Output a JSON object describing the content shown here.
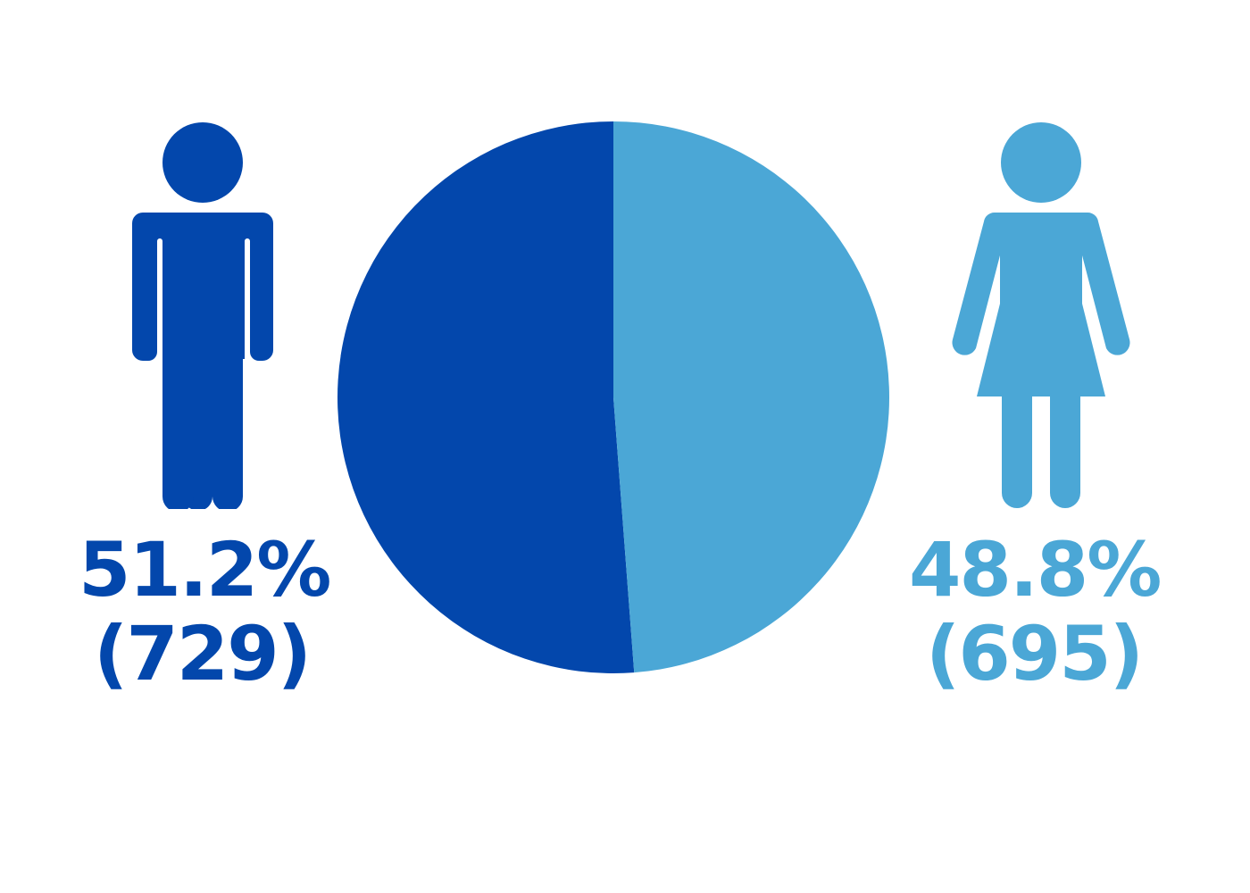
{
  "colors": {
    "male": "#0347AC",
    "female": "#4BA7D6",
    "background": "#FFFFFF"
  },
  "icons": {
    "male": "male-person-icon",
    "female": "female-person-icon"
  },
  "chart_data": {
    "type": "pie",
    "categories": [
      "Male",
      "Female"
    ],
    "values": [
      51.2,
      48.8
    ],
    "counts": [
      729,
      695
    ],
    "labels": [
      {
        "percent": "51.2%",
        "count": "(729)"
      },
      {
        "percent": "48.8%",
        "count": "(695)"
      }
    ],
    "colors": [
      "#0347AC",
      "#4BA7D6"
    ],
    "start_angle_deg": 0,
    "direction": "clockwise_from_top_for_female"
  }
}
